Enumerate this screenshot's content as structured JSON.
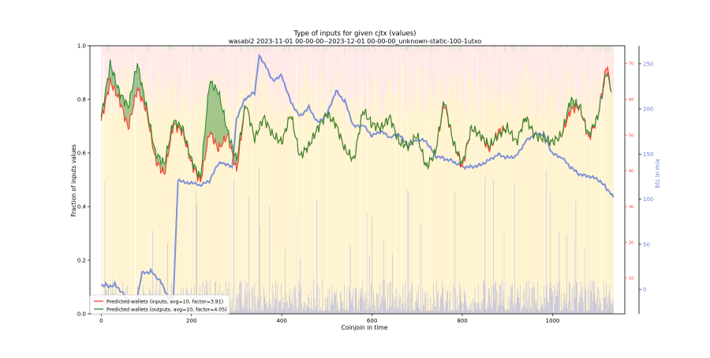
{
  "chart_data": {
    "type": "line",
    "title": "Type of inputs for given cjtx (values)",
    "subtitle": "wasabi2 2023-11-01 00-00-00--2023-12-01 00-00-00_unknown-static-100-1utxo",
    "xlabel": "Coinjoin in time",
    "ylabel": "Fraction of inputs values",
    "y2label": "",
    "y3label": "btc in mix",
    "xlim": [
      -25,
      1160
    ],
    "ylim": [
      0.0,
      1.0
    ],
    "y2lim": [
      0,
      75
    ],
    "y3lim": [
      -27,
      270
    ],
    "xticks": [
      0,
      200,
      400,
      600,
      800,
      1000
    ],
    "yticks": [
      0.0,
      0.2,
      0.4,
      0.6,
      0.8,
      1.0
    ],
    "y2ticks": [
      10,
      20,
      30,
      40,
      50,
      60,
      70
    ],
    "y3ticks": [
      0,
      50,
      100,
      150,
      200,
      250
    ],
    "grid": false,
    "legend_position": "lower-left",
    "colors": {
      "inputs": "#ff3b30",
      "outputs": "#2e8b2e",
      "btc": "#6a7fd8",
      "yellow_band": "#ffe9a8",
      "pink_band": "#ffd6d6",
      "blue_bars": "#5e6ff0"
    },
    "series": [
      {
        "name": "Predicted wallets (inputs, avg=10, factor=3.91)",
        "axis": "right",
        "x": [
          0,
          20,
          40,
          60,
          80,
          100,
          120,
          140,
          160,
          180,
          200,
          220,
          240,
          260,
          280,
          300,
          320,
          340,
          360,
          380,
          400,
          420,
          440,
          460,
          480,
          500,
          520,
          540,
          560,
          580,
          600,
          620,
          640,
          660,
          680,
          700,
          720,
          740,
          760,
          780,
          800,
          820,
          840,
          860,
          880,
          900,
          920,
          940,
          960,
          980,
          1000,
          1020,
          1040,
          1060,
          1080,
          1100,
          1120,
          1130
        ],
        "values": [
          54,
          65,
          60,
          52,
          63,
          57,
          43,
          39,
          53,
          51,
          42,
          37,
          51,
          46,
          50,
          40,
          59,
          49,
          55,
          50,
          48,
          56,
          44,
          47,
          52,
          56,
          53,
          46,
          43,
          57,
          53,
          52,
          55,
          48,
          47,
          50,
          41,
          45,
          59,
          48,
          41,
          52,
          50,
          46,
          51,
          52,
          48,
          55,
          50,
          49,
          48,
          50,
          57,
          58,
          49,
          55,
          70,
          62
        ]
      },
      {
        "name": "Predicted wallets (outputs, avg=10, factor=4.05)",
        "axis": "right",
        "x": [
          0,
          20,
          40,
          60,
          80,
          100,
          120,
          140,
          160,
          180,
          200,
          220,
          240,
          260,
          280,
          300,
          320,
          340,
          360,
          380,
          400,
          420,
          440,
          460,
          480,
          500,
          520,
          540,
          560,
          580,
          600,
          620,
          640,
          660,
          680,
          700,
          720,
          740,
          760,
          780,
          800,
          820,
          840,
          860,
          880,
          900,
          920,
          940,
          960,
          980,
          1000,
          1020,
          1040,
          1060,
          1080,
          1100,
          1120,
          1130
        ],
        "values": [
          55,
          70,
          62,
          58,
          70,
          58,
          45,
          42,
          54,
          52,
          43,
          38,
          65,
          62,
          51,
          43,
          59,
          49,
          55,
          50,
          48,
          56,
          44,
          47,
          52,
          56,
          53,
          46,
          43,
          57,
          53,
          52,
          55,
          48,
          47,
          50,
          41,
          45,
          60,
          48,
          42,
          52,
          50,
          47,
          50,
          52,
          48,
          55,
          50,
          49,
          48,
          50,
          60,
          58,
          50,
          55,
          68,
          62
        ]
      },
      {
        "name": "btc in mix",
        "axis": "right2",
        "x": [
          0,
          10,
          20,
          30,
          50,
          60,
          80,
          90,
          110,
          130,
          150,
          160,
          170,
          200,
          220,
          240,
          260,
          270,
          290,
          300,
          320,
          340,
          350,
          370,
          380,
          400,
          420,
          440,
          460,
          480,
          500,
          520,
          540,
          560,
          580,
          600,
          620,
          640,
          660,
          680,
          700,
          720,
          740,
          760,
          780,
          800,
          820,
          840,
          860,
          880,
          900,
          920,
          940,
          960,
          980,
          1000,
          1020,
          1040,
          1060,
          1080,
          1100,
          1120,
          1135
        ],
        "values": [
          4,
          6,
          3,
          6,
          -5,
          -15,
          -10,
          18,
          20,
          10,
          -10,
          -10,
          120,
          118,
          115,
          120,
          140,
          140,
          135,
          190,
          212,
          218,
          260,
          242,
          232,
          237,
          208,
          192,
          202,
          185,
          194,
          220,
          208,
          180,
          182,
          170,
          175,
          168,
          172,
          158,
          166,
          164,
          148,
          145,
          142,
          136,
          136,
          138,
          144,
          150,
          146,
          148,
          164,
          172,
          172,
          150,
          146,
          135,
          127,
          125,
          122,
          112,
          102
        ]
      }
    ],
    "legend": [
      "Predicted wallets (inputs, avg=10, factor=3.91)",
      "Predicted wallets (outputs, avg=10, factor=4.05)"
    ]
  }
}
